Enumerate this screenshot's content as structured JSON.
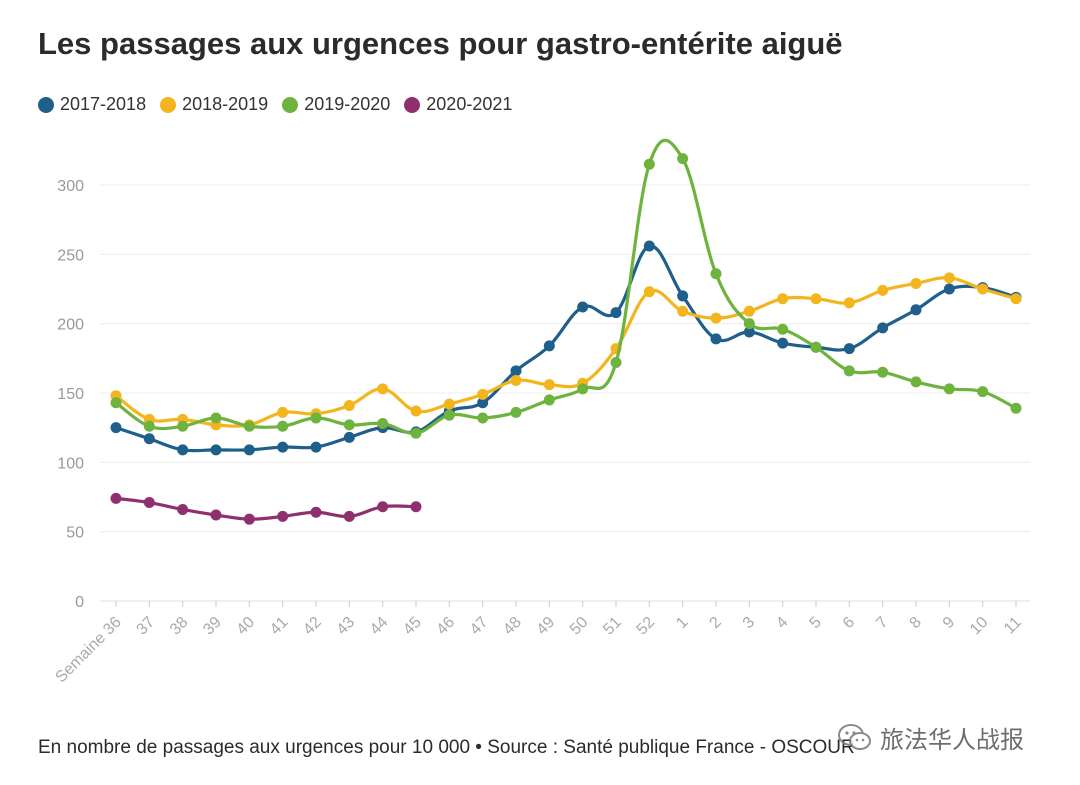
{
  "title": "Les passages aux urgences pour gastro-entérite aiguë",
  "footnote": "En nombre de passages aux urgences pour 10 000 • Source : Santé publique France - OSCOUR",
  "watermark": {
    "text": "旅法华人战报",
    "icon": "wechat-icon"
  },
  "chart_data": {
    "type": "line",
    "title": "Les passages aux urgences pour gastro-entérite aiguë",
    "xlabel": "",
    "ylabel": "",
    "ylim": [
      0,
      325
    ],
    "yticks": [
      0,
      50,
      100,
      150,
      200,
      250,
      300
    ],
    "grid": true,
    "legend_position": "top-left",
    "categories": [
      "Semaine 36",
      "37",
      "38",
      "39",
      "40",
      "41",
      "42",
      "43",
      "44",
      "45",
      "46",
      "47",
      "48",
      "49",
      "50",
      "51",
      "52",
      "1",
      "2",
      "3",
      "4",
      "5",
      "6",
      "7",
      "8",
      "9",
      "10",
      "11"
    ],
    "series": [
      {
        "name": "2017-2018",
        "color": "#1f5f8b",
        "values": [
          125,
          117,
          109,
          109,
          109,
          111,
          111,
          118,
          125,
          122,
          137,
          143,
          166,
          184,
          212,
          208,
          256,
          220,
          189,
          194,
          186,
          183,
          182,
          197,
          210,
          225,
          226,
          219
        ]
      },
      {
        "name": "2018-2019",
        "color": "#f2b51d",
        "values": [
          148,
          131,
          131,
          127,
          127,
          136,
          135,
          141,
          153,
          137,
          142,
          149,
          159,
          156,
          157,
          182,
          223,
          209,
          204,
          209,
          218,
          218,
          215,
          224,
          229,
          233,
          225,
          218
        ]
      },
      {
        "name": "2019-2020",
        "color": "#6fb33f",
        "values": [
          143,
          126,
          126,
          132,
          126,
          126,
          132,
          127,
          128,
          121,
          134,
          132,
          136,
          145,
          153,
          172,
          315,
          319,
          236,
          200,
          196,
          183,
          166,
          165,
          158,
          153,
          151,
          139
        ]
      },
      {
        "name": "2020-2021",
        "color": "#8e2f6e",
        "values": [
          74,
          71,
          66,
          62,
          59,
          61,
          64,
          61,
          68,
          68,
          null,
          null,
          null,
          null,
          null,
          null,
          null,
          null,
          null,
          null,
          null,
          null,
          null,
          null,
          null,
          null,
          null,
          null
        ]
      }
    ]
  }
}
